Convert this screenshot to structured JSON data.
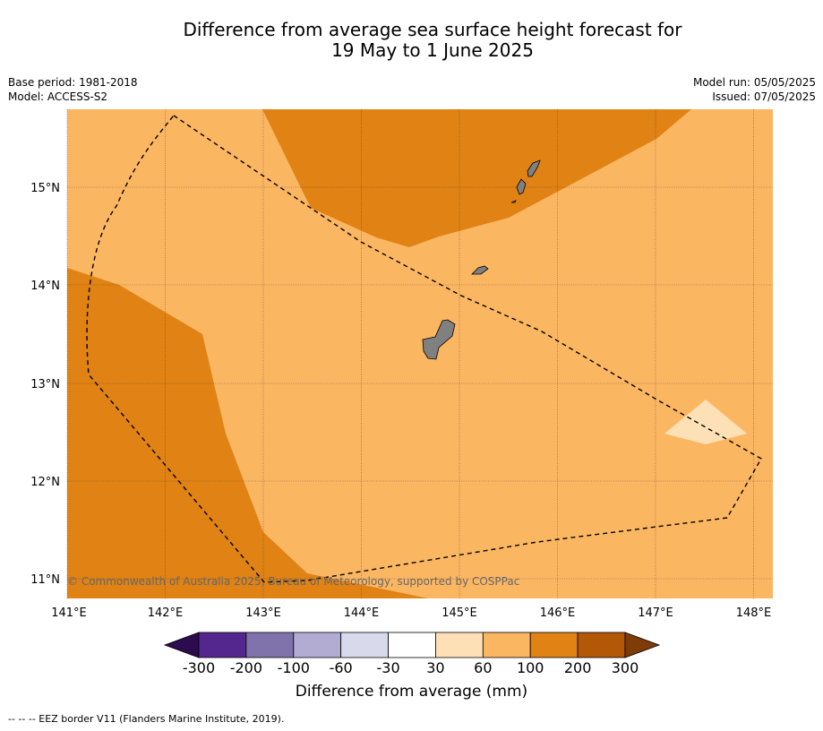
{
  "title_line1": "Difference from average sea surface height forecast for",
  "title_line2": "19 May to 1 June 2025",
  "meta_left": {
    "base_period": "Base period: 1981-2018",
    "model": "Model: ACCESS-S2"
  },
  "meta_right": {
    "model_run": "Model run: 05/05/2025",
    "issued": "Issued: 07/05/2025"
  },
  "copyright": "© Commonwealth of Australia 2025, Bureau of Meteorology, supported by COSPPac",
  "lat_ticks": [
    "11°N",
    "12°N",
    "13°N",
    "14°N",
    "15°N"
  ],
  "lon_ticks": [
    "141°E",
    "142°E",
    "143°E",
    "144°E",
    "145°E",
    "146°E",
    "147°E",
    "148°E"
  ],
  "colorbar": {
    "tick_labels": [
      "-300",
      "-200",
      "-100",
      "-60",
      "-30",
      "30",
      "60",
      "100",
      "200",
      "300"
    ],
    "colors": [
      "#2d0b4f",
      "#54278f",
      "#8073ac",
      "#b2abd2",
      "#d8daeb",
      "#ffffff",
      "#fee0b6",
      "#fbb662",
      "#e08214",
      "#b35806",
      "#7f3b08"
    ],
    "label": "Difference from average (mm)"
  },
  "legend_footer": "--  --  -- EEZ border V11 (Flanders Marine Institute, 2019).",
  "map_colors": {
    "fill_60_100": "#fbb662",
    "fill_100_200": "#e08214",
    "fill_30_60": "#fee0b6",
    "land": "#808080"
  }
}
